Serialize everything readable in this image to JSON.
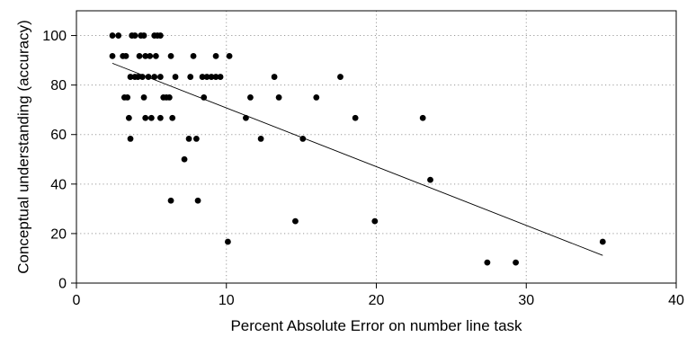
{
  "chart_data": {
    "type": "scatter",
    "title": "",
    "xlabel": "Percent Absolute Error on number line task",
    "ylabel": "Conceptual understanding (accuracy)",
    "xlim": [
      0,
      40
    ],
    "ylim": [
      0,
      110
    ],
    "x_ticks": [
      0,
      10,
      20,
      30,
      40
    ],
    "y_ticks": [
      0,
      20,
      40,
      60,
      80,
      100
    ],
    "grid": true,
    "legend": "none",
    "series": [
      {
        "points": [
          {
            "x": 2.4,
            "y": 100
          },
          {
            "x": 2.8,
            "y": 100
          },
          {
            "x": 3.7,
            "y": 100
          },
          {
            "x": 3.9,
            "y": 100
          },
          {
            "x": 4.3,
            "y": 100
          },
          {
            "x": 4.5,
            "y": 100
          },
          {
            "x": 5.2,
            "y": 100
          },
          {
            "x": 5.4,
            "y": 100
          },
          {
            "x": 5.6,
            "y": 100
          },
          {
            "x": 2.4,
            "y": 91.7
          },
          {
            "x": 3.1,
            "y": 91.7
          },
          {
            "x": 3.3,
            "y": 91.7
          },
          {
            "x": 4.2,
            "y": 91.7
          },
          {
            "x": 4.6,
            "y": 91.7
          },
          {
            "x": 4.9,
            "y": 91.7
          },
          {
            "x": 5.3,
            "y": 91.7
          },
          {
            "x": 6.3,
            "y": 91.7
          },
          {
            "x": 7.8,
            "y": 91.7
          },
          {
            "x": 9.3,
            "y": 91.7
          },
          {
            "x": 10.2,
            "y": 91.7
          },
          {
            "x": 3.6,
            "y": 83.3
          },
          {
            "x": 3.9,
            "y": 83.3
          },
          {
            "x": 4.1,
            "y": 83.3
          },
          {
            "x": 4.4,
            "y": 83.3
          },
          {
            "x": 4.8,
            "y": 83.3
          },
          {
            "x": 5.2,
            "y": 83.3
          },
          {
            "x": 5.6,
            "y": 83.3
          },
          {
            "x": 6.6,
            "y": 83.3
          },
          {
            "x": 7.6,
            "y": 83.3
          },
          {
            "x": 8.4,
            "y": 83.3
          },
          {
            "x": 8.7,
            "y": 83.3
          },
          {
            "x": 9.0,
            "y": 83.3
          },
          {
            "x": 9.3,
            "y": 83.3
          },
          {
            "x": 9.6,
            "y": 83.3
          },
          {
            "x": 13.2,
            "y": 83.3
          },
          {
            "x": 17.6,
            "y": 83.3
          },
          {
            "x": 3.2,
            "y": 75
          },
          {
            "x": 3.4,
            "y": 75
          },
          {
            "x": 4.5,
            "y": 75
          },
          {
            "x": 5.8,
            "y": 75
          },
          {
            "x": 6.0,
            "y": 75
          },
          {
            "x": 6.2,
            "y": 75
          },
          {
            "x": 8.5,
            "y": 75
          },
          {
            "x": 11.6,
            "y": 75
          },
          {
            "x": 13.5,
            "y": 75
          },
          {
            "x": 16.0,
            "y": 75
          },
          {
            "x": 3.5,
            "y": 66.7
          },
          {
            "x": 4.6,
            "y": 66.7
          },
          {
            "x": 5.0,
            "y": 66.7
          },
          {
            "x": 5.6,
            "y": 66.7
          },
          {
            "x": 6.4,
            "y": 66.7
          },
          {
            "x": 11.3,
            "y": 66.7
          },
          {
            "x": 18.6,
            "y": 66.7
          },
          {
            "x": 23.1,
            "y": 66.7
          },
          {
            "x": 3.6,
            "y": 58.3
          },
          {
            "x": 7.5,
            "y": 58.3
          },
          {
            "x": 8.0,
            "y": 58.3
          },
          {
            "x": 12.3,
            "y": 58.3
          },
          {
            "x": 15.1,
            "y": 58.3
          },
          {
            "x": 7.2,
            "y": 50
          },
          {
            "x": 23.6,
            "y": 41.7
          },
          {
            "x": 6.3,
            "y": 33.3
          },
          {
            "x": 8.1,
            "y": 33.3
          },
          {
            "x": 14.6,
            "y": 25
          },
          {
            "x": 19.9,
            "y": 25
          },
          {
            "x": 10.1,
            "y": 16.7
          },
          {
            "x": 35.1,
            "y": 16.7
          },
          {
            "x": 27.4,
            "y": 8.3
          },
          {
            "x": 29.3,
            "y": 8.3
          }
        ]
      }
    ],
    "trendline": {
      "x": [
        2.4,
        35.1
      ],
      "y": [
        88.8,
        11.2
      ]
    }
  }
}
